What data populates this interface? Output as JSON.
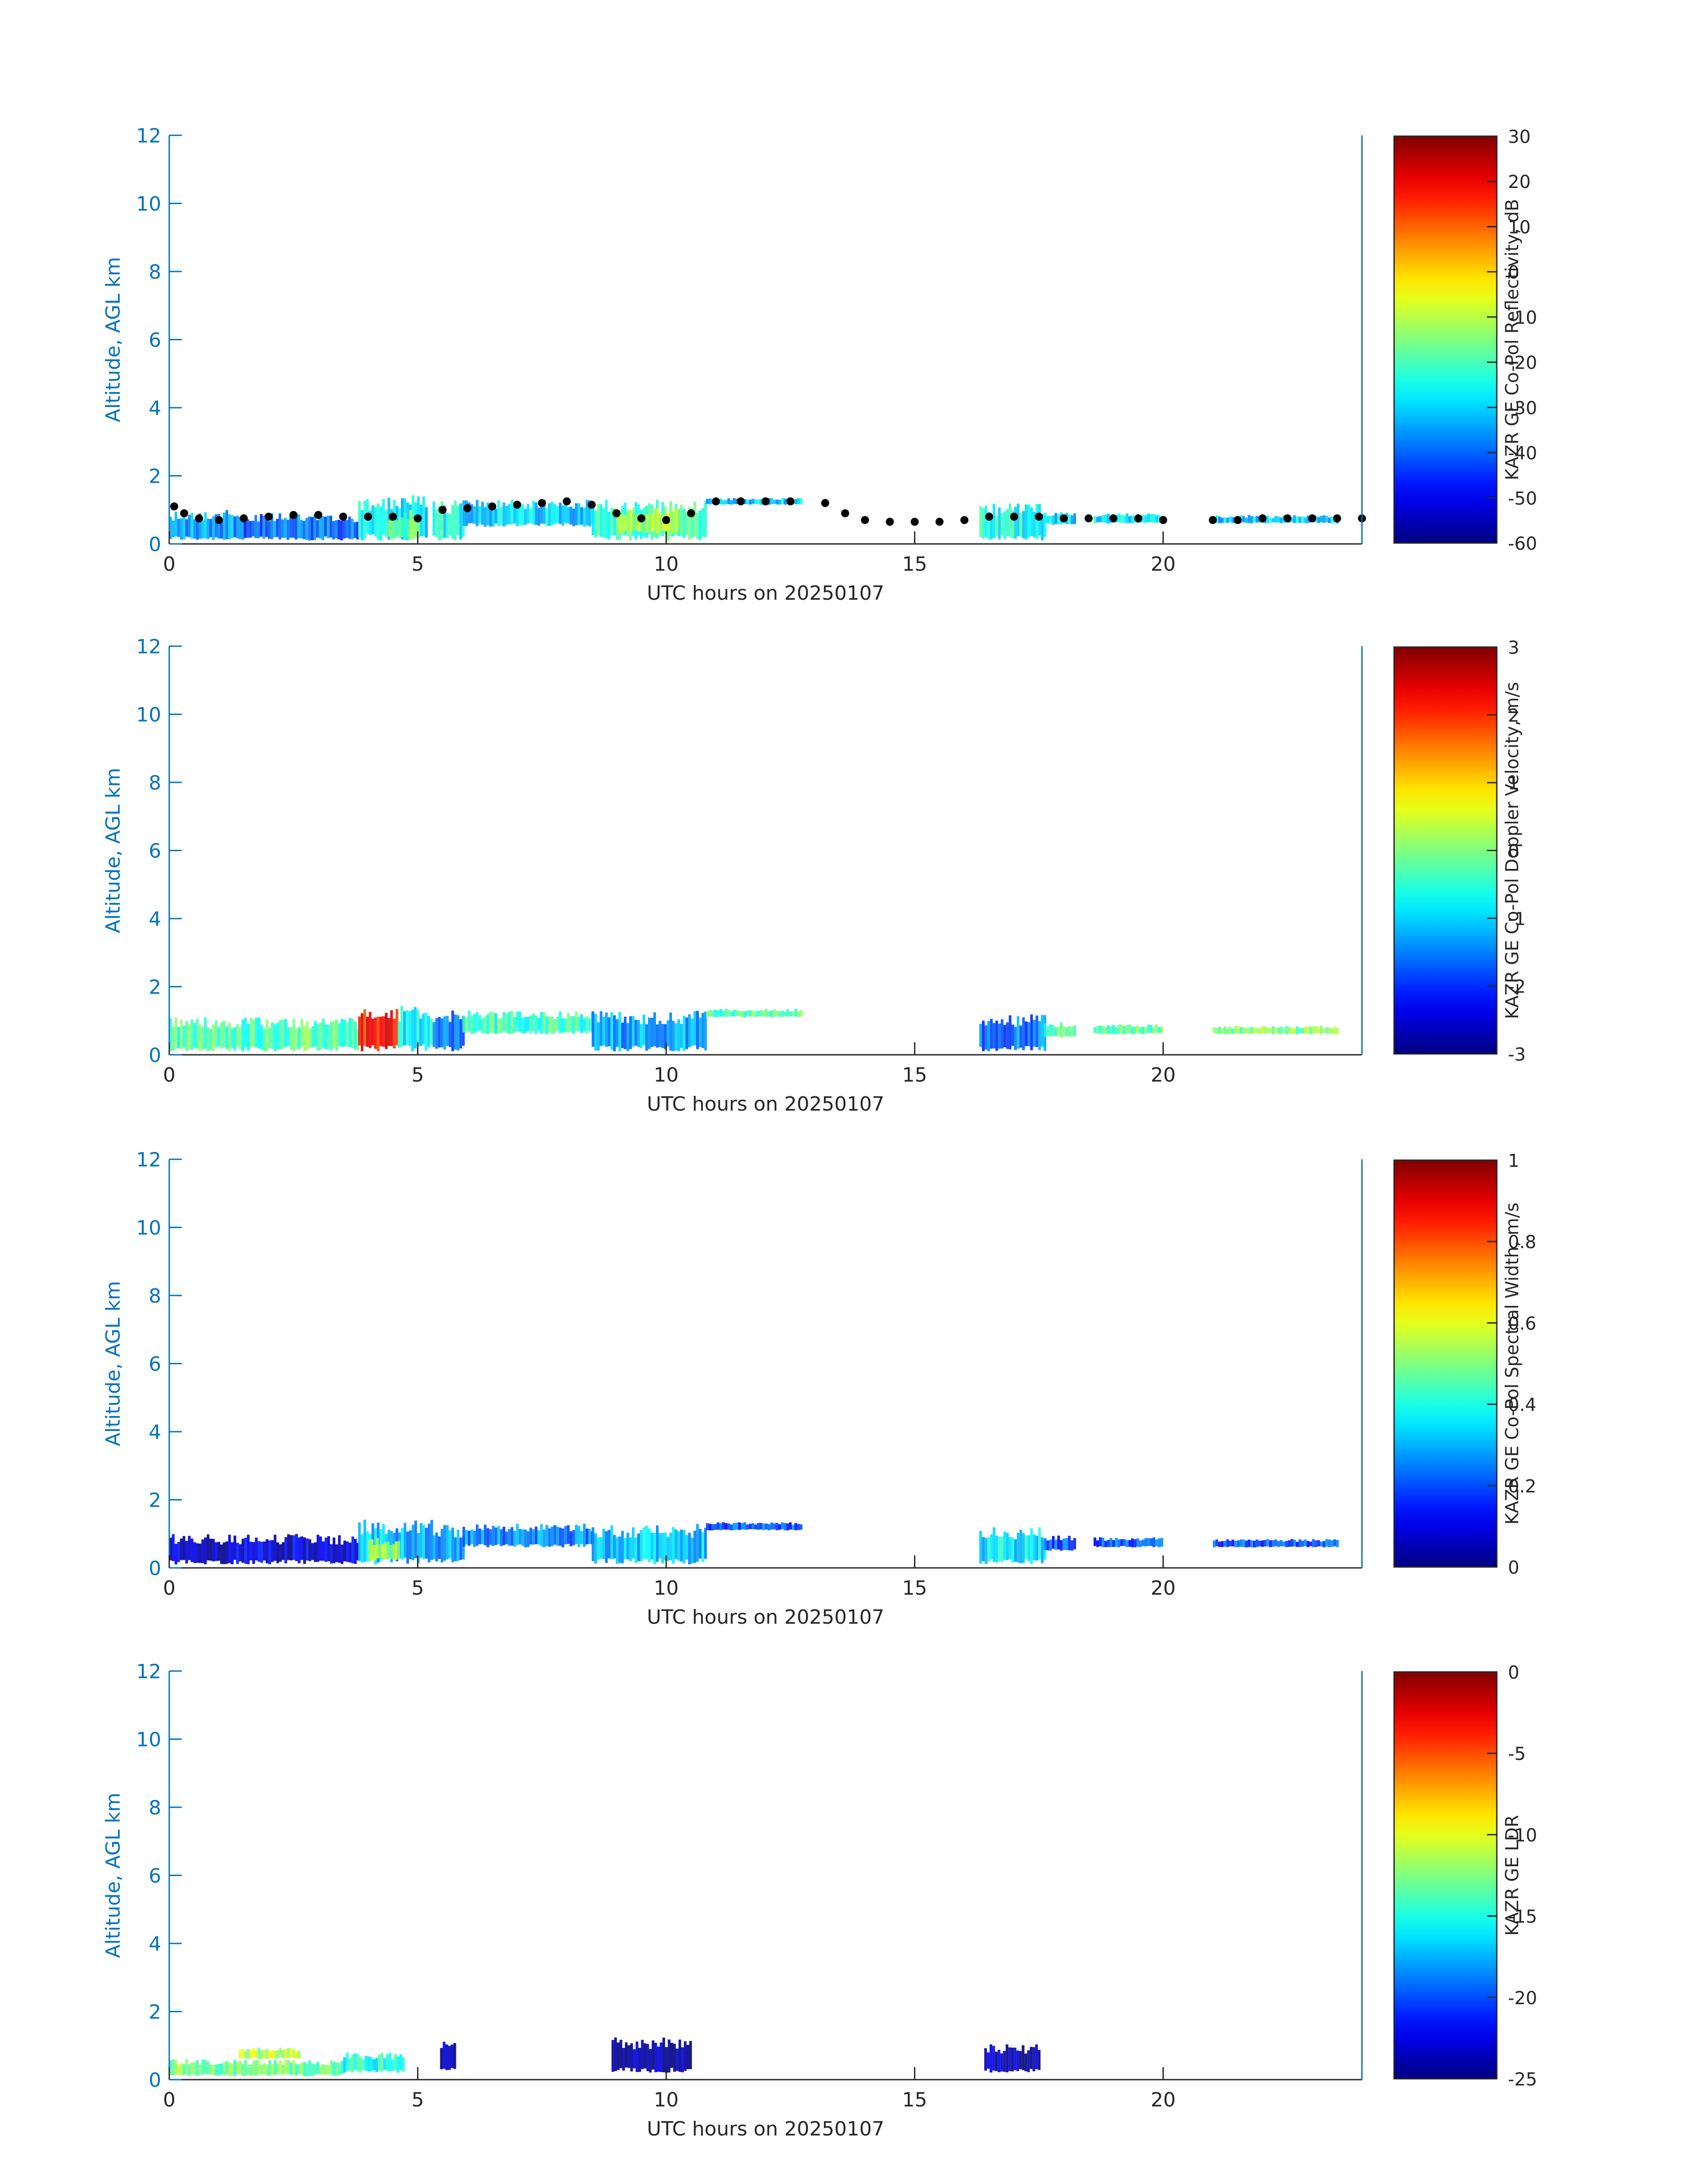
{
  "figure": {
    "accent_color": "#0072BD",
    "text_color": "#262626",
    "colormap": "jet"
  },
  "chart_data": [
    {
      "type": "heatmap",
      "title": "",
      "xlabel": "UTC hours on 20250107",
      "ylabel": "Altitude, AGL km",
      "xlim": [
        0,
        24
      ],
      "ylim": [
        0,
        12
      ],
      "x_ticks": [
        0,
        5,
        10,
        15,
        20
      ],
      "y_ticks": [
        0,
        2,
        4,
        6,
        8,
        10,
        12
      ],
      "colorbar": {
        "label": "KAZR GE Co-Pol Reflectivity, dB",
        "range": [
          -60,
          30
        ],
        "ticks": [
          30,
          20,
          10,
          0,
          -10,
          -20,
          -30,
          -40,
          -50,
          -60
        ]
      },
      "overlay": {
        "type": "scatter",
        "color": "#000000",
        "x": [
          0.1,
          0.3,
          0.6,
          1,
          1.5,
          2,
          2.5,
          3,
          3.5,
          4,
          4.5,
          5,
          5.5,
          6,
          6.5,
          7,
          7.5,
          8,
          8.5,
          9,
          9.5,
          10,
          10.5,
          11,
          11.5,
          12,
          12.5,
          13.2,
          13.6,
          14,
          14.5,
          15,
          15.5,
          16,
          16.5,
          17,
          17.5,
          18,
          18.5,
          19,
          19.5,
          20,
          21,
          21.5,
          22,
          22.5,
          23,
          23.5,
          24
        ],
        "y": [
          1.1,
          0.9,
          0.75,
          0.7,
          0.75,
          0.8,
          0.85,
          0.85,
          0.8,
          0.8,
          0.8,
          0.75,
          1.0,
          1.05,
          1.1,
          1.15,
          1.2,
          1.25,
          1.15,
          0.9,
          0.75,
          0.7,
          0.9,
          1.25,
          1.25,
          1.25,
          1.25,
          1.2,
          0.9,
          0.7,
          0.65,
          0.65,
          0.65,
          0.7,
          0.8,
          0.8,
          0.8,
          0.75,
          0.75,
          0.75,
          0.75,
          0.7,
          0.7,
          0.7,
          0.75,
          0.75,
          0.75,
          0.75,
          0.75
        ]
      },
      "echo_regions": [
        {
          "x0": 0.0,
          "x1": 1.5,
          "y0": 0.1,
          "y1": 1.0,
          "value": -35
        },
        {
          "x0": 1.5,
          "x1": 3.8,
          "y0": 0.1,
          "y1": 0.9,
          "value": -40
        },
        {
          "x0": 3.8,
          "x1": 5.2,
          "y0": 0.1,
          "y1": 1.45,
          "value": -28
        },
        {
          "x0": 4.4,
          "x1": 5.0,
          "y0": 0.1,
          "y1": 1.0,
          "value": -18
        },
        {
          "x0": 5.3,
          "x1": 5.9,
          "y0": 0.1,
          "y1": 1.3,
          "value": -25
        },
        {
          "x0": 5.9,
          "x1": 8.5,
          "y0": 0.5,
          "y1": 1.3,
          "value": -30
        },
        {
          "x0": 8.5,
          "x1": 10.8,
          "y0": 0.1,
          "y1": 1.3,
          "value": -22
        },
        {
          "x0": 9.0,
          "x1": 10.3,
          "y0": 0.3,
          "y1": 1.1,
          "value": -12
        },
        {
          "x0": 10.8,
          "x1": 12.7,
          "y0": 1.15,
          "y1": 1.35,
          "value": -30
        },
        {
          "x0": 16.3,
          "x1": 17.6,
          "y0": 0.1,
          "y1": 1.2,
          "value": -25
        },
        {
          "x0": 17.6,
          "x1": 18.2,
          "y0": 0.55,
          "y1": 0.95,
          "value": -30
        },
        {
          "x0": 18.6,
          "x1": 20.0,
          "y0": 0.6,
          "y1": 0.9,
          "value": -28
        },
        {
          "x0": 21.0,
          "x1": 23.5,
          "y0": 0.6,
          "y1": 0.85,
          "value": -30
        }
      ]
    },
    {
      "type": "heatmap",
      "title": "",
      "xlabel": "UTC hours on 20250107",
      "ylabel": "Altitude, AGL km",
      "xlim": [
        0,
        24
      ],
      "ylim": [
        0,
        12
      ],
      "x_ticks": [
        0,
        5,
        10,
        15,
        20
      ],
      "y_ticks": [
        0,
        2,
        4,
        6,
        8,
        10,
        12
      ],
      "colorbar": {
        "label": "KAZR GE Co-Pol Doppler Velocity, m/s",
        "range": [
          -3,
          3
        ],
        "ticks": [
          3,
          2,
          1,
          0,
          -1,
          -2,
          -3
        ]
      },
      "echo_regions": [
        {
          "x0": 0.0,
          "x1": 3.8,
          "y0": 0.1,
          "y1": 1.1,
          "value": -0.3
        },
        {
          "x0": 3.8,
          "x1": 4.6,
          "y0": 0.1,
          "y1": 1.45,
          "value": 2.2
        },
        {
          "x0": 4.6,
          "x1": 5.3,
          "y0": 0.1,
          "y1": 1.45,
          "value": -0.8
        },
        {
          "x0": 5.3,
          "x1": 5.9,
          "y0": 0.1,
          "y1": 1.3,
          "value": -1.6
        },
        {
          "x0": 5.9,
          "x1": 8.5,
          "y0": 0.6,
          "y1": 1.3,
          "value": -0.4
        },
        {
          "x0": 8.5,
          "x1": 10.8,
          "y0": 0.1,
          "y1": 1.3,
          "value": -1.3
        },
        {
          "x0": 10.8,
          "x1": 12.7,
          "y0": 1.1,
          "y1": 1.35,
          "value": -0.3
        },
        {
          "x0": 16.3,
          "x1": 17.6,
          "y0": 0.1,
          "y1": 1.2,
          "value": -1.6
        },
        {
          "x0": 17.6,
          "x1": 18.2,
          "y0": 0.5,
          "y1": 0.95,
          "value": -0.2
        },
        {
          "x0": 18.6,
          "x1": 20.0,
          "y0": 0.6,
          "y1": 0.9,
          "value": -0.2
        },
        {
          "x0": 21.0,
          "x1": 23.5,
          "y0": 0.6,
          "y1": 0.85,
          "value": 0.0
        }
      ]
    },
    {
      "type": "heatmap",
      "title": "",
      "xlabel": "UTC hours on 20250107",
      "ylabel": "Altitude, AGL km",
      "xlim": [
        0,
        24
      ],
      "ylim": [
        0,
        12
      ],
      "x_ticks": [
        0,
        5,
        10,
        15,
        20
      ],
      "y_ticks": [
        0,
        2,
        4,
        6,
        8,
        10,
        12
      ],
      "colorbar": {
        "label": "KAZR GE Co-Pol Spectral Width, m/s",
        "range": [
          0,
          1
        ],
        "ticks": [
          1,
          0.8,
          0.6,
          0.4,
          0.2,
          0
        ]
      },
      "echo_regions": [
        {
          "x0": 0.0,
          "x1": 3.8,
          "y0": 0.1,
          "y1": 1.0,
          "value": 0.08
        },
        {
          "x0": 3.8,
          "x1": 5.3,
          "y0": 0.1,
          "y1": 1.45,
          "value": 0.3
        },
        {
          "x0": 4.0,
          "x1": 4.6,
          "y0": 0.2,
          "y1": 0.9,
          "value": 0.55
        },
        {
          "x0": 5.3,
          "x1": 5.9,
          "y0": 0.1,
          "y1": 1.3,
          "value": 0.28
        },
        {
          "x0": 5.9,
          "x1": 8.5,
          "y0": 0.6,
          "y1": 1.3,
          "value": 0.25
        },
        {
          "x0": 8.5,
          "x1": 10.8,
          "y0": 0.1,
          "y1": 1.3,
          "value": 0.32
        },
        {
          "x0": 10.8,
          "x1": 12.7,
          "y0": 1.1,
          "y1": 1.35,
          "value": 0.2
        },
        {
          "x0": 16.3,
          "x1": 17.6,
          "y0": 0.1,
          "y1": 1.2,
          "value": 0.35
        },
        {
          "x0": 17.6,
          "x1": 18.2,
          "y0": 0.5,
          "y1": 0.95,
          "value": 0.2
        },
        {
          "x0": 18.6,
          "x1": 20.0,
          "y0": 0.6,
          "y1": 0.9,
          "value": 0.2
        },
        {
          "x0": 21.0,
          "x1": 23.5,
          "y0": 0.6,
          "y1": 0.85,
          "value": 0.2
        }
      ]
    },
    {
      "type": "heatmap",
      "title": "",
      "xlabel": "UTC hours on 20250107",
      "ylabel": "Altitude, AGL km",
      "xlim": [
        0,
        24
      ],
      "ylim": [
        0,
        12
      ],
      "x_ticks": [
        0,
        5,
        10,
        15,
        20
      ],
      "y_ticks": [
        0,
        2,
        4,
        6,
        8,
        10,
        12
      ],
      "colorbar": {
        "label": "KAZR GE LDR",
        "range": [
          -25,
          0
        ],
        "ticks": [
          0,
          -5,
          -10,
          -15,
          -20,
          -25
        ]
      },
      "echo_regions": [
        {
          "x0": 0.0,
          "x1": 3.5,
          "y0": 0.1,
          "y1": 0.6,
          "value": -13
        },
        {
          "x0": 1.4,
          "x1": 2.6,
          "y0": 0.6,
          "y1": 0.95,
          "value": -11
        },
        {
          "x0": 3.5,
          "x1": 4.7,
          "y0": 0.2,
          "y1": 0.8,
          "value": -15
        },
        {
          "x0": 5.45,
          "x1": 5.75,
          "y0": 0.2,
          "y1": 1.25,
          "value": -24
        },
        {
          "x0": 8.9,
          "x1": 10.5,
          "y0": 0.2,
          "y1": 1.25,
          "value": -24.5
        },
        {
          "x0": 16.4,
          "x1": 17.5,
          "y0": 0.2,
          "y1": 1.05,
          "value": -24
        }
      ]
    }
  ]
}
